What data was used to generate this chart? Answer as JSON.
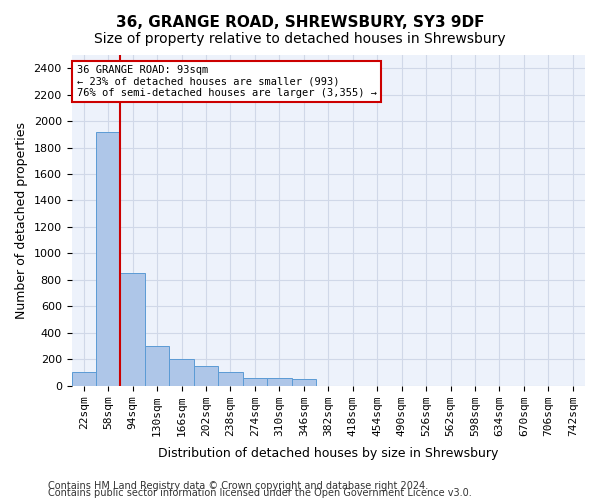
{
  "title1": "36, GRANGE ROAD, SHREWSBURY, SY3 9DF",
  "title2": "Size of property relative to detached houses in Shrewsbury",
  "xlabel": "Distribution of detached houses by size in Shrewsbury",
  "ylabel": "Number of detached properties",
  "bin_labels": [
    "22sqm",
    "58sqm",
    "94sqm",
    "130sqm",
    "166sqm",
    "202sqm",
    "238sqm",
    "274sqm",
    "310sqm",
    "346sqm",
    "382sqm",
    "418sqm",
    "454sqm",
    "490sqm",
    "526sqm",
    "562sqm",
    "598sqm",
    "634sqm",
    "670sqm",
    "706sqm",
    "742sqm"
  ],
  "bar_heights": [
    100,
    1920,
    850,
    300,
    200,
    145,
    100,
    60,
    60,
    50,
    0,
    0,
    0,
    0,
    0,
    0,
    0,
    0,
    0,
    0,
    0
  ],
  "bar_color": "#aec6e8",
  "bar_edge_color": "#5b9bd5",
  "grid_color": "#d0d8e8",
  "background_color": "#edf2fb",
  "vline_x": 1.5,
  "vline_color": "#cc0000",
  "annotation_title": "36 GRANGE ROAD: 93sqm",
  "annotation_line1": "← 23% of detached houses are smaller (993)",
  "annotation_line2": "76% of semi-detached houses are larger (3,355) →",
  "ylim": [
    0,
    2500
  ],
  "yticks": [
    0,
    200,
    400,
    600,
    800,
    1000,
    1200,
    1400,
    1600,
    1800,
    2000,
    2200,
    2400
  ],
  "footer1": "Contains HM Land Registry data © Crown copyright and database right 2024.",
  "footer2": "Contains public sector information licensed under the Open Government Licence v3.0.",
  "title1_fontsize": 11,
  "title2_fontsize": 10,
  "xlabel_fontsize": 9,
  "ylabel_fontsize": 9,
  "tick_fontsize": 8,
  "footer_fontsize": 7
}
